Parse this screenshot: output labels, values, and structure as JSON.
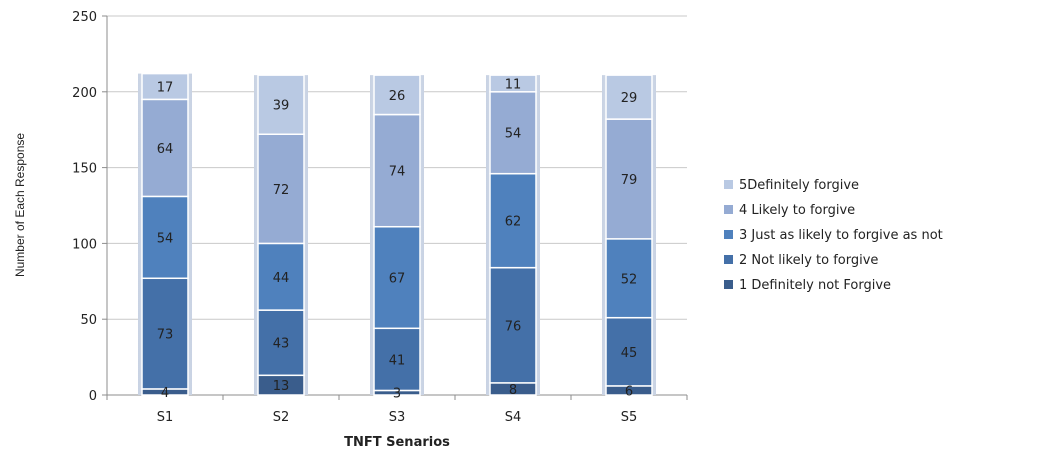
{
  "chart_data": {
    "type": "bar",
    "stacked": true,
    "title": "",
    "xlabel": "TNFT Senarios",
    "ylabel": "Number of Each Response",
    "ylim": [
      0,
      250
    ],
    "yticks": [
      0,
      50,
      100,
      150,
      200,
      250
    ],
    "categories": [
      "S1",
      "S2",
      "S3",
      "S4",
      "S5"
    ],
    "grid": "horizontal",
    "legend_position": "right",
    "series": [
      {
        "name": "1 Definitely not Forgive",
        "color": "#3a5d8c",
        "values": [
          4,
          13,
          3,
          8,
          6
        ]
      },
      {
        "name": "2 Not likely to forgive",
        "color": "#4470a8",
        "values": [
          73,
          43,
          41,
          76,
          45
        ]
      },
      {
        "name": "3 Just as likely to forgive as not",
        "color": "#4f81bd",
        "values": [
          54,
          44,
          67,
          62,
          52
        ]
      },
      {
        "name": "4 Likely to forgive",
        "color": "#95abd3",
        "values": [
          64,
          72,
          74,
          54,
          79
        ]
      },
      {
        "name": "5Definitely forgive",
        "color": "#b9c9e3",
        "values": [
          17,
          39,
          26,
          11,
          29
        ]
      }
    ]
  }
}
